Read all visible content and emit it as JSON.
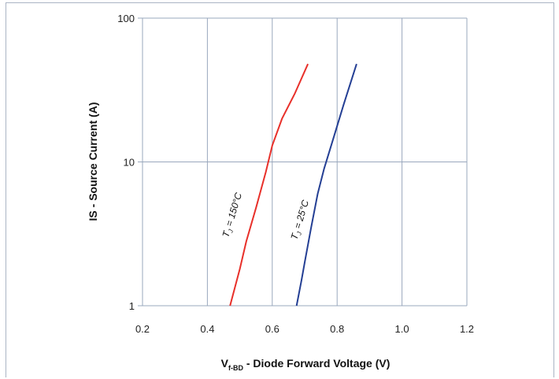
{
  "chart_data": {
    "type": "line",
    "x_scale": "linear",
    "y_scale": "log",
    "xlim": [
      0.2,
      1.2
    ],
    "ylim": [
      1,
      100
    ],
    "x_ticks": [
      "0.2",
      "0.4",
      "0.6",
      "0.8",
      "1.0",
      "1.2"
    ],
    "y_ticks": [
      "1",
      "10",
      "100"
    ],
    "xlabel_main": "V",
    "xlabel_sub": "f-BD",
    "xlabel_rest": " - Diode Forward Voltage (V)",
    "ylabel": "IS - Source Current (A)",
    "grid": true,
    "series": [
      {
        "label_main": "T",
        "label_sub": "J",
        "label_rest": " = 150°C",
        "color": "#e8302a",
        "points": [
          [
            0.47,
            1.0
          ],
          [
            0.5,
            1.8
          ],
          [
            0.52,
            2.8
          ],
          [
            0.55,
            4.8
          ],
          [
            0.58,
            8.5
          ],
          [
            0.6,
            13.0
          ],
          [
            0.63,
            20.0
          ],
          [
            0.67,
            30.0
          ],
          [
            0.71,
            48.0
          ]
        ]
      },
      {
        "label_main": "T",
        "label_sub": "J",
        "label_rest": " = 25°C",
        "color": "#243f94",
        "points": [
          [
            0.675,
            1.0
          ],
          [
            0.69,
            1.5
          ],
          [
            0.7,
            2.0
          ],
          [
            0.72,
            3.5
          ],
          [
            0.74,
            6.0
          ],
          [
            0.76,
            9.0
          ],
          [
            0.79,
            15.0
          ],
          [
            0.82,
            25.0
          ],
          [
            0.86,
            48.0
          ]
        ]
      }
    ]
  }
}
